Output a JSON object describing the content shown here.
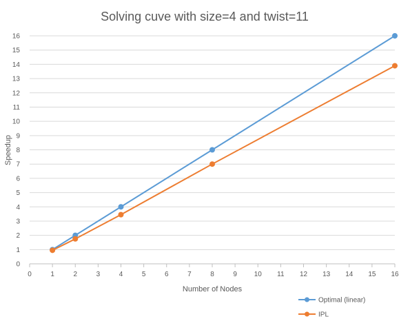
{
  "chart_data": {
    "type": "line",
    "title": "Solving cuve with size=4 and twist=11",
    "xlabel": "Number  of Nodes",
    "ylabel": "Speedup",
    "xlim": [
      0,
      16
    ],
    "ylim": [
      0,
      16
    ],
    "xticks": [
      0,
      1,
      2,
      3,
      4,
      5,
      6,
      7,
      8,
      9,
      10,
      11,
      12,
      13,
      14,
      15,
      16
    ],
    "yticks": [
      0,
      1,
      2,
      3,
      4,
      5,
      6,
      7,
      8,
      9,
      10,
      11,
      12,
      13,
      14,
      15,
      16
    ],
    "grid": "horizontal",
    "legend_position": "bottom-right",
    "series": [
      {
        "name": "Optimal (linear)",
        "color": "#5b9bd5",
        "x": [
          1,
          2,
          4,
          8,
          16
        ],
        "y": [
          1,
          2,
          4,
          8,
          16
        ]
      },
      {
        "name": "IPL",
        "color": "#ed7d31",
        "x": [
          1,
          2,
          4,
          8,
          16
        ],
        "y": [
          0.95,
          1.75,
          3.45,
          7.0,
          13.9
        ]
      }
    ]
  }
}
